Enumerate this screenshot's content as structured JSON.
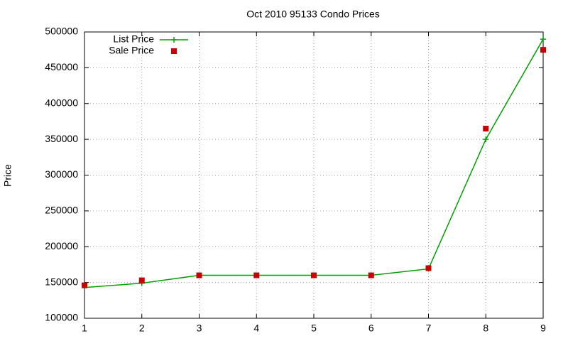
{
  "chart_data": {
    "type": "line",
    "title": "Oct 2010 95133 Condo Prices",
    "y_label": "Price",
    "x": [
      1,
      2,
      3,
      4,
      5,
      6,
      7,
      8,
      9
    ],
    "xlim": [
      1,
      9
    ],
    "xticks": [
      1,
      2,
      3,
      4,
      5,
      6,
      7,
      8,
      9
    ],
    "ylim": [
      100000,
      500000
    ],
    "yticks": [
      100000,
      150000,
      200000,
      250000,
      300000,
      350000,
      400000,
      450000,
      500000
    ],
    "grid": true,
    "legend": "top-left",
    "series": [
      {
        "name": "List Price",
        "color": "#00a000",
        "style": "linespoints",
        "values": [
          143000,
          149000,
          160000,
          160000,
          160000,
          160000,
          169000,
          350000,
          490000
        ]
      },
      {
        "name": "Sale Price",
        "color": "#c80000",
        "style": "points",
        "values": [
          146000,
          153000,
          160000,
          160000,
          160000,
          160000,
          170000,
          365000,
          475000
        ]
      }
    ]
  }
}
